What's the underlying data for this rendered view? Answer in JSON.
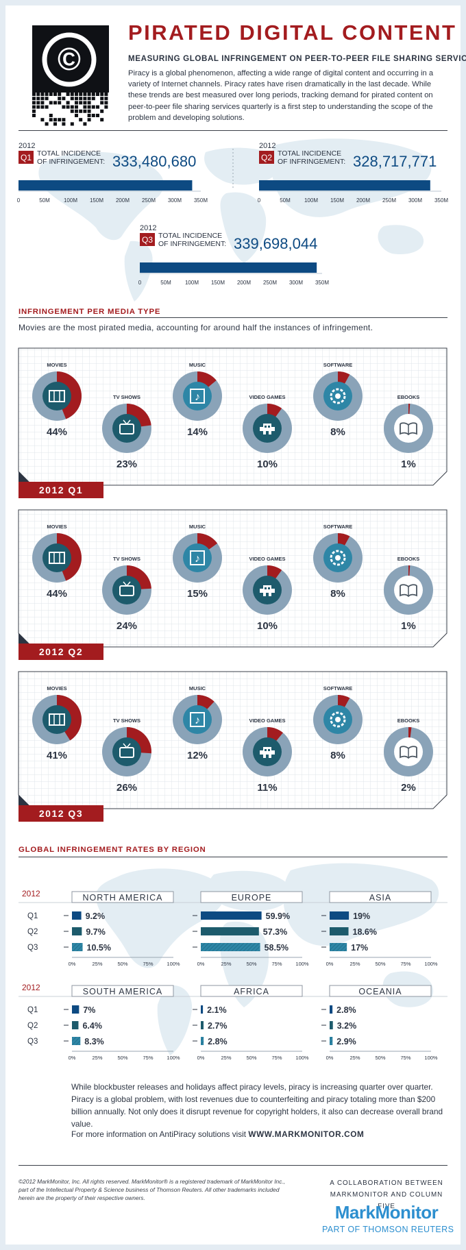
{
  "header": {
    "title": "PIRATED DIGITAL CONTENT",
    "subtitle": "MEASURING GLOBAL INFRINGEMENT ON PEER-TO-PEER FILE SHARING SERVICES",
    "intro": "Piracy is a global phenomenon, affecting a wide range of digital content and occurring in a variety of Internet channels. Piracy rates have risen dramatically in the last decade. While these trends are best measured over long periods, tracking demand for pirated content on peer-to-peer file sharing services quarterly is a first step to understanding the scope of the problem and developing solutions.",
    "copyright_symbol": "©"
  },
  "colors": {
    "red": "#a31c1f",
    "navy": "#0d4a82",
    "teal_dark": "#1d5b6c",
    "teal_light": "#2e86a6",
    "ring_gray": "#8aa3b8",
    "map": "#e3edf3"
  },
  "chart_data": [
    {
      "type": "bar",
      "title": "TOTAL INCIDENCE OF INFRINGEMENT",
      "year": "2012",
      "categories": [
        "Q1",
        "Q2",
        "Q3"
      ],
      "values": [
        333480680,
        328717771,
        339698044
      ],
      "value_labels": [
        "333,480,680",
        "328,717,771",
        "339,698,044"
      ],
      "ticks": [
        "0",
        "50M",
        "100M",
        "150M",
        "200M",
        "250M",
        "300M",
        "350M"
      ],
      "xlim": [
        0,
        350000000
      ]
    },
    {
      "type": "pie",
      "title": "INFRINGEMENT PER MEDIA TYPE",
      "subtitle": "Movies are the most pirated media, accounting for around half the instances of infringement.",
      "categories": [
        "MOVIES",
        "TV SHOWS",
        "MUSIC",
        "VIDEO GAMES",
        "SOFTWARE",
        "EBOOKS"
      ],
      "icons": [
        "film-icon",
        "tv-icon",
        "music-icon",
        "game-icon",
        "software-icon",
        "ebook-icon"
      ],
      "panels": [
        {
          "label": "2012 Q1",
          "values": [
            44,
            23,
            14,
            10,
            8,
            1
          ],
          "value_labels": [
            "44%",
            "23%",
            "14%",
            "10%",
            "8%",
            "1%"
          ]
        },
        {
          "label": "2012 Q2",
          "values": [
            44,
            24,
            15,
            10,
            8,
            1
          ],
          "value_labels": [
            "44%",
            "24%",
            "15%",
            "10%",
            "8%",
            "1%"
          ]
        },
        {
          "label": "2012 Q3",
          "values": [
            41,
            26,
            12,
            11,
            8,
            2
          ],
          "value_labels": [
            "41%",
            "26%",
            "12%",
            "11%",
            "8%",
            "2%"
          ]
        }
      ]
    },
    {
      "type": "bar",
      "title": "GLOBAL INFRINGEMENT RATES BY REGION",
      "year": "2012",
      "quarters": [
        "Q1",
        "Q2",
        "Q3"
      ],
      "ticks": [
        "0%",
        "25%",
        "50%",
        "75%",
        "100%"
      ],
      "xlim": [
        0,
        100
      ],
      "regions": [
        {
          "name": "NORTH AMERICA",
          "values": [
            9.2,
            9.7,
            10.5
          ],
          "value_labels": [
            "9.2%",
            "9.7%",
            "10.5%"
          ]
        },
        {
          "name": "EUROPE",
          "values": [
            59.9,
            57.3,
            58.5
          ],
          "value_labels": [
            "59.9%",
            "57.3%",
            "58.5%"
          ]
        },
        {
          "name": "ASIA",
          "values": [
            19,
            18.6,
            17
          ],
          "value_labels": [
            "19%",
            "18.6%",
            "17%"
          ]
        },
        {
          "name": "SOUTH AMERICA",
          "values": [
            7,
            6.4,
            8.3
          ],
          "value_labels": [
            "7%",
            "6.4%",
            "8.3%"
          ]
        },
        {
          "name": "AFRICA",
          "values": [
            2.1,
            2.7,
            2.8
          ],
          "value_labels": [
            "2.1%",
            "2.7%",
            "2.8%"
          ]
        },
        {
          "name": "OCEANIA",
          "values": [
            2.8,
            3.2,
            2.9
          ],
          "value_labels": [
            "2.8%",
            "3.2%",
            "2.9%"
          ]
        }
      ]
    }
  ],
  "footer": {
    "closing": "While blockbuster releases and holidays affect piracy levels, piracy is increasing quarter over quarter.  Piracy is a global problem, with lost revenues due to counterfeiting and piracy totaling more than $200 billion annually. Not only does it disrupt revenue for copyright holders, it also can decrease overall brand value.",
    "more_info_prefix": "For more information on AntiPiracy solutions visit",
    "more_info_link": "WWW.MARKMONITOR.COM",
    "copyright": "©2012 MarkMonitor, Inc. All rights reserved. MarkMonitor® is a registered trademark of MarkMonitor Inc., part of the Intellectual Property & Science business of Thomson Reuters. All other trademarks included herein are the property of their respective owners.",
    "collab_line1": "A COLLABORATION BETWEEN",
    "collab_line2": "MARKMONITOR AND COLUMN FIVE",
    "logo": "MarkMonitor",
    "logo_sub": "PART OF THOMSON REUTERS"
  }
}
